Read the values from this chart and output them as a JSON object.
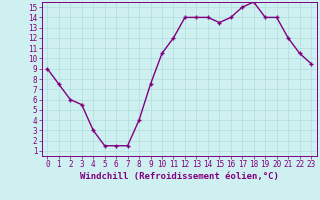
{
  "x": [
    0,
    1,
    2,
    3,
    4,
    5,
    6,
    7,
    8,
    9,
    10,
    11,
    12,
    13,
    14,
    15,
    16,
    17,
    18,
    19,
    20,
    21,
    22,
    23
  ],
  "y": [
    9.0,
    7.5,
    6.0,
    5.5,
    3.0,
    1.5,
    1.5,
    1.5,
    4.0,
    7.5,
    10.5,
    12.0,
    14.0,
    14.0,
    14.0,
    13.5,
    14.0,
    15.0,
    15.5,
    14.0,
    14.0,
    12.0,
    10.5,
    9.5
  ],
  "line_color": "#800080",
  "marker": "+",
  "marker_color": "#800080",
  "bg_color": "#cff0f0",
  "grid_color": "#b0dede",
  "xlim": [
    -0.5,
    23.5
  ],
  "ylim": [
    0.5,
    15.5
  ],
  "yticks": [
    1,
    2,
    3,
    4,
    5,
    6,
    7,
    8,
    9,
    10,
    11,
    12,
    13,
    14,
    15
  ],
  "xticks": [
    0,
    1,
    2,
    3,
    4,
    5,
    6,
    7,
    8,
    9,
    10,
    11,
    12,
    13,
    14,
    15,
    16,
    17,
    18,
    19,
    20,
    21,
    22,
    23
  ],
  "font_color": "#800080",
  "xlabel": "Windchill (Refroidissement éolien,°C)",
  "xlabel_fontsize": 6.5,
  "tick_fontsize": 5.5,
  "line_width": 1.0,
  "marker_size": 3.5,
  "marker_linewidth": 1.0
}
